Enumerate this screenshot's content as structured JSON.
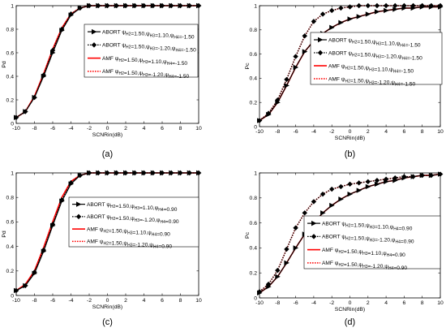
{
  "figure": {
    "panels": [
      {
        "label": "(a)"
      },
      {
        "label": "(b)"
      },
      {
        "label": "(c)"
      },
      {
        "label": "(d)"
      }
    ]
  },
  "colors": {
    "black": "#000000",
    "red": "#ff0000",
    "axis": "#000000"
  },
  "chart_data": [
    {
      "type": "line",
      "title": "",
      "xlabel": "SCNRin(dB)",
      "ylabel": "Pd",
      "xlim": [
        -10,
        10
      ],
      "ylim": [
        0,
        1
      ],
      "xticks": [
        -10,
        -8,
        -6,
        -4,
        -2,
        0,
        2,
        4,
        6,
        8,
        10
      ],
      "yticks": [
        0,
        0.2,
        0.4,
        0.6,
        0.8,
        1
      ],
      "legend_position": "top-right",
      "series": [
        {
          "name": "ABORT ψH2=1.50,ψH3=1.10,ψH4=-1.50",
          "color": "#000000",
          "style": "solid",
          "marker": "right-triangle",
          "x": [
            -10,
            -9,
            -8,
            -7,
            -6,
            -5,
            -4,
            -3,
            -2,
            -1,
            0,
            1,
            2,
            3,
            4,
            5,
            6,
            7,
            8,
            9,
            10
          ],
          "y": [
            0.05,
            0.1,
            0.22,
            0.4,
            0.6,
            0.79,
            0.92,
            0.98,
            1.0,
            1.0,
            1.0,
            1.0,
            1.0,
            1.0,
            1.0,
            1.0,
            1.0,
            1.0,
            1.0,
            1.0,
            1.0
          ]
        },
        {
          "name": "ABORT ψH2=1.50,ψH3=-1.20,ψH4=-1.50",
          "color": "#000000",
          "style": "dotted",
          "marker": "diamond",
          "x": [
            -10,
            -9,
            -8,
            -7,
            -6,
            -5,
            -4,
            -3,
            -2,
            -1,
            0,
            1,
            2,
            3,
            4,
            5,
            6,
            7,
            8,
            9,
            10
          ],
          "y": [
            0.05,
            0.1,
            0.22,
            0.41,
            0.62,
            0.8,
            0.93,
            0.98,
            1.0,
            1.0,
            1.0,
            1.0,
            1.0,
            1.0,
            1.0,
            1.0,
            1.0,
            1.0,
            1.0,
            1.0,
            1.0
          ]
        },
        {
          "name": "AMF ψH2=1.50,ψH3=1.10,ψH4=-1.50",
          "color": "#ff0000",
          "style": "solid",
          "marker": "none",
          "x": [
            -10,
            -9,
            -8,
            -7,
            -6,
            -5,
            -4,
            -3,
            -2,
            -1,
            0,
            1,
            2,
            3,
            4,
            5,
            6,
            7,
            8,
            9,
            10
          ],
          "y": [
            0.05,
            0.1,
            0.23,
            0.42,
            0.63,
            0.81,
            0.93,
            0.98,
            1.0,
            1.0,
            1.0,
            1.0,
            1.0,
            1.0,
            1.0,
            1.0,
            1.0,
            1.0,
            1.0,
            1.0,
            1.0
          ]
        },
        {
          "name": "AMF ψH2=1.50,ψH3=-1.20,ψH4=-1.50",
          "color": "#ff0000",
          "style": "dotted",
          "marker": "none",
          "x": [
            -10,
            -9,
            -8,
            -7,
            -6,
            -5,
            -4,
            -3,
            -2,
            -1,
            0,
            1,
            2,
            3,
            4,
            5,
            6,
            7,
            8,
            9,
            10
          ],
          "y": [
            0.05,
            0.1,
            0.23,
            0.42,
            0.63,
            0.81,
            0.93,
            0.98,
            1.0,
            1.0,
            1.0,
            1.0,
            1.0,
            1.0,
            1.0,
            1.0,
            1.0,
            1.0,
            1.0,
            1.0,
            1.0
          ]
        }
      ]
    },
    {
      "type": "line",
      "title": "",
      "xlabel": "SCNRin(dB)",
      "ylabel": "Pc",
      "xlim": [
        -10,
        10
      ],
      "ylim": [
        0,
        1
      ],
      "xticks": [
        -10,
        -8,
        -6,
        -4,
        -2,
        0,
        2,
        4,
        6,
        8,
        10
      ],
      "yticks": [
        0,
        0.2,
        0.4,
        0.6,
        0.8,
        1
      ],
      "legend_position": "top-right",
      "series": [
        {
          "name": "ABORT ψH2=1.50,ψH3=1.10,ψH4=-1.50",
          "color": "#000000",
          "style": "solid",
          "marker": "right-triangle",
          "x": [
            -10,
            -9,
            -8,
            -7,
            -6,
            -5,
            -4,
            -3,
            -2,
            -1,
            0,
            1,
            2,
            3,
            4,
            5,
            6,
            7,
            8,
            9,
            10
          ],
          "y": [
            0.05,
            0.1,
            0.2,
            0.34,
            0.49,
            0.62,
            0.71,
            0.77,
            0.82,
            0.86,
            0.89,
            0.91,
            0.93,
            0.95,
            0.96,
            0.97,
            0.98,
            0.98,
            0.99,
            0.99,
            0.99
          ]
        },
        {
          "name": "ABORT ψH2=1.50,ψH3=-1.20,ψH4=-1.50",
          "color": "#000000",
          "style": "dotted",
          "marker": "diamond",
          "x": [
            -10,
            -9,
            -8,
            -7,
            -6,
            -5,
            -4,
            -3,
            -2,
            -1,
            0,
            1,
            2,
            3,
            4,
            5,
            6,
            7,
            8,
            9,
            10
          ],
          "y": [
            0.05,
            0.11,
            0.22,
            0.39,
            0.58,
            0.75,
            0.87,
            0.93,
            0.96,
            0.98,
            0.99,
            1.0,
            1.0,
            1.0,
            1.0,
            1.0,
            1.0,
            1.0,
            1.0,
            1.0,
            1.0
          ]
        },
        {
          "name": "AMF ψH2=1.50,ψH3=1.10,ψH4=-1.50",
          "color": "#ff0000",
          "style": "solid",
          "marker": "none",
          "x": [
            -10,
            -9,
            -8,
            -7,
            -6,
            -5,
            -4,
            -3,
            -2,
            -1,
            0,
            1,
            2,
            3,
            4,
            5,
            6,
            7,
            8,
            9,
            10
          ],
          "y": [
            0.05,
            0.1,
            0.2,
            0.34,
            0.49,
            0.62,
            0.71,
            0.77,
            0.82,
            0.86,
            0.89,
            0.91,
            0.93,
            0.95,
            0.96,
            0.97,
            0.98,
            0.98,
            0.99,
            0.99,
            0.99
          ]
        },
        {
          "name": "AMF ψH2=1.50,ψH3=-1.20,ψH4=-1.50",
          "color": "#ff0000",
          "style": "dotted",
          "marker": "none",
          "x": [
            -10,
            -9,
            -8,
            -7,
            -6,
            -5,
            -4,
            -3,
            -2,
            -1,
            0,
            1,
            2,
            3,
            4,
            5,
            6,
            7,
            8,
            9,
            10
          ],
          "y": [
            0.05,
            0.11,
            0.22,
            0.39,
            0.58,
            0.75,
            0.87,
            0.93,
            0.96,
            0.98,
            0.99,
            1.0,
            1.0,
            1.0,
            1.0,
            1.0,
            1.0,
            1.0,
            1.0,
            1.0,
            1.0
          ]
        }
      ]
    },
    {
      "type": "line",
      "title": "",
      "xlabel": "SCNRin(dB)",
      "ylabel": "Pd",
      "xlim": [
        -10,
        10
      ],
      "ylim": [
        0,
        1
      ],
      "xticks": [
        -10,
        -8,
        -6,
        -4,
        -2,
        0,
        2,
        4,
        6,
        8,
        10
      ],
      "yticks": [
        0,
        0.2,
        0.4,
        0.6,
        0.8,
        1
      ],
      "legend_position": "top-right",
      "series": [
        {
          "name": "ABORT ψH2=1.50,ψH3=1.10,ψH4=0.90",
          "color": "#000000",
          "style": "solid",
          "marker": "right-triangle",
          "x": [
            -10,
            -9,
            -8,
            -7,
            -6,
            -5,
            -4,
            -3,
            -2,
            -1,
            0,
            1,
            2,
            3,
            4,
            5,
            6,
            7,
            8,
            9,
            10
          ],
          "y": [
            0.04,
            0.08,
            0.18,
            0.36,
            0.57,
            0.77,
            0.91,
            0.98,
            1.0,
            1.0,
            1.0,
            1.0,
            1.0,
            1.0,
            1.0,
            1.0,
            1.0,
            1.0,
            1.0,
            1.0,
            1.0
          ]
        },
        {
          "name": "ABORT ψH2=1.50,ψH3=-1.20,ψH4=0.90",
          "color": "#000000",
          "style": "dotted",
          "marker": "diamond",
          "x": [
            -10,
            -9,
            -8,
            -7,
            -6,
            -5,
            -4,
            -3,
            -2,
            -1,
            0,
            1,
            2,
            3,
            4,
            5,
            6,
            7,
            8,
            9,
            10
          ],
          "y": [
            0.04,
            0.08,
            0.19,
            0.37,
            0.58,
            0.78,
            0.92,
            0.98,
            1.0,
            1.0,
            1.0,
            1.0,
            1.0,
            1.0,
            1.0,
            1.0,
            1.0,
            1.0,
            1.0,
            1.0,
            1.0
          ]
        },
        {
          "name": "AMF ψH2=1.50,ψH3=1.10,ψH4=0.90",
          "color": "#ff0000",
          "style": "solid",
          "marker": "none",
          "x": [
            -10,
            -9,
            -8,
            -7,
            -6,
            -5,
            -4,
            -3,
            -2,
            -1,
            0,
            1,
            2,
            3,
            4,
            5,
            6,
            7,
            8,
            9,
            10
          ],
          "y": [
            0.04,
            0.09,
            0.2,
            0.39,
            0.6,
            0.8,
            0.93,
            0.98,
            1.0,
            1.0,
            1.0,
            1.0,
            1.0,
            1.0,
            1.0,
            1.0,
            1.0,
            1.0,
            1.0,
            1.0,
            1.0
          ]
        },
        {
          "name": "AMF ψH2=1.50,ψH3=-1.20,ψH4=0.90",
          "color": "#ff0000",
          "style": "dotted",
          "marker": "none",
          "x": [
            -10,
            -9,
            -8,
            -7,
            -6,
            -5,
            -4,
            -3,
            -2,
            -1,
            0,
            1,
            2,
            3,
            4,
            5,
            6,
            7,
            8,
            9,
            10
          ],
          "y": [
            0.04,
            0.09,
            0.2,
            0.39,
            0.6,
            0.8,
            0.93,
            0.98,
            1.0,
            1.0,
            1.0,
            1.0,
            1.0,
            1.0,
            1.0,
            1.0,
            1.0,
            1.0,
            1.0,
            1.0,
            1.0
          ]
        }
      ]
    },
    {
      "type": "line",
      "title": "",
      "xlabel": "SCNRin(dB)",
      "ylabel": "Pc",
      "xlim": [
        -10,
        10
      ],
      "ylim": [
        0,
        1
      ],
      "xticks": [
        -10,
        -8,
        -6,
        -4,
        -2,
        0,
        2,
        4,
        6,
        8,
        10
      ],
      "yticks": [
        0,
        0.2,
        0.4,
        0.6,
        0.8,
        1
      ],
      "legend_position": "right",
      "series": [
        {
          "name": "ABORT ψH2=1.50,ψH3=1.10,ψH4=0.90",
          "color": "#000000",
          "style": "solid",
          "marker": "right-triangle",
          "x": [
            -10,
            -9,
            -8,
            -7,
            -6,
            -5,
            -4,
            -3,
            -2,
            -1,
            0,
            1,
            2,
            3,
            4,
            5,
            6,
            7,
            8,
            9,
            10
          ],
          "y": [
            0.04,
            0.09,
            0.17,
            0.28,
            0.4,
            0.51,
            0.6,
            0.68,
            0.74,
            0.79,
            0.83,
            0.86,
            0.89,
            0.91,
            0.93,
            0.94,
            0.96,
            0.97,
            0.98,
            0.98,
            0.99
          ]
        },
        {
          "name": "ABORT ψH2=1.50,ψH3=-1.20,ψH4=0.90",
          "color": "#000000",
          "style": "dotted",
          "marker": "diamond",
          "x": [
            -10,
            -9,
            -8,
            -7,
            -6,
            -5,
            -4,
            -3,
            -2,
            -1,
            0,
            1,
            2,
            3,
            4,
            5,
            6,
            7,
            8,
            9,
            10
          ],
          "y": [
            0.05,
            0.11,
            0.22,
            0.39,
            0.56,
            0.68,
            0.77,
            0.83,
            0.87,
            0.89,
            0.91,
            0.92,
            0.93,
            0.94,
            0.95,
            0.96,
            0.97,
            0.97,
            0.98,
            0.98,
            0.99
          ]
        },
        {
          "name": "AMF ψH2=1.50,ψH3=1.10,ψH4=0.90",
          "color": "#ff0000",
          "style": "solid",
          "marker": "none",
          "x": [
            -10,
            -9,
            -8,
            -7,
            -6,
            -5,
            -4,
            -3,
            -2,
            -1,
            0,
            1,
            2,
            3,
            4,
            5,
            6,
            7,
            8,
            9,
            10
          ],
          "y": [
            0.04,
            0.09,
            0.17,
            0.28,
            0.4,
            0.51,
            0.6,
            0.68,
            0.74,
            0.79,
            0.83,
            0.86,
            0.89,
            0.91,
            0.93,
            0.94,
            0.96,
            0.97,
            0.98,
            0.98,
            0.99
          ]
        },
        {
          "name": "AMF ψH2=1.50,ψH3=-1.20,ψH4=0.90",
          "color": "#ff0000",
          "style": "dotted",
          "marker": "none",
          "x": [
            -10,
            -9,
            -8,
            -7,
            -6,
            -5,
            -4,
            -3,
            -2,
            -1,
            0,
            1,
            2,
            3,
            4,
            5,
            6,
            7,
            8,
            9,
            10
          ],
          "y": [
            0.05,
            0.11,
            0.22,
            0.39,
            0.56,
            0.68,
            0.77,
            0.83,
            0.87,
            0.89,
            0.91,
            0.92,
            0.93,
            0.94,
            0.95,
            0.96,
            0.97,
            0.97,
            0.98,
            0.98,
            0.99
          ]
        }
      ]
    }
  ]
}
